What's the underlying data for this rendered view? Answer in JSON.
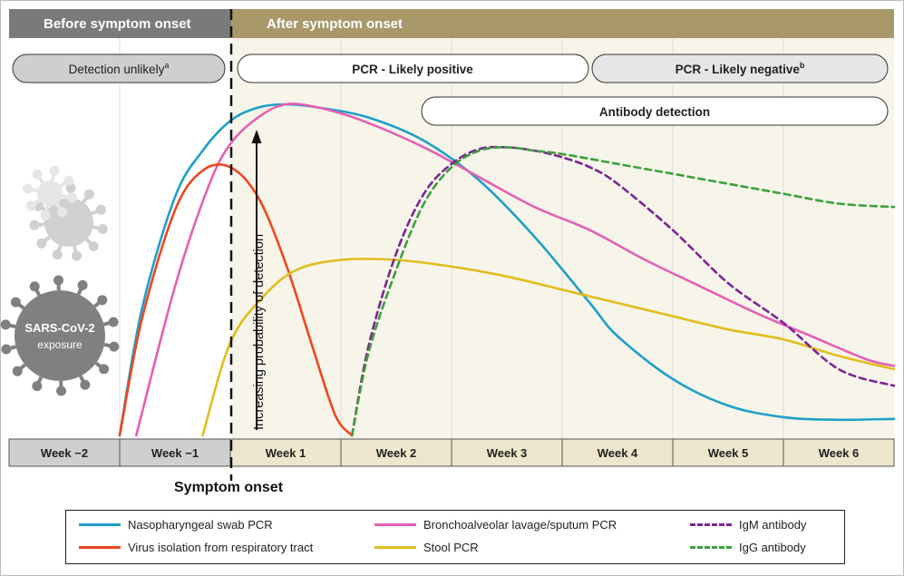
{
  "header": {
    "before_label": "Before symptom onset",
    "after_label": "After symptom onset",
    "before_color": "#7a7a7a",
    "after_color": "#a8986a"
  },
  "pills": {
    "detection_unlikely": "Detection unlikely",
    "detection_unlikely_sup": "a",
    "pcr_positive": "PCR - Likely positive",
    "pcr_negative": "PCR - Likely negative",
    "pcr_negative_sup": "b",
    "antibody": "Antibody detection"
  },
  "virus": {
    "label_line1": "SARS-CoV-2",
    "label_line2": "exposure"
  },
  "annotation": {
    "arrow_text": "Increasing probability of detection",
    "symptom_onset": "Symptom onset"
  },
  "chart_data": {
    "type": "line",
    "title": "",
    "x_categories": [
      "Week −2",
      "Week −1",
      "Week 1",
      "Week 2",
      "Week 3",
      "Week 4",
      "Week 5",
      "Week 6"
    ],
    "xlim": [
      -2,
      6
    ],
    "ylim": [
      0,
      1
    ],
    "ylabel": "Increasing probability of detection",
    "symptom_onset_x": 0,
    "series": [
      {
        "name": "Nasopharyngeal swab PCR",
        "color": "#1ea0c8",
        "dash": false,
        "x": [
          -1.0,
          -0.8,
          -0.5,
          -0.25,
          0,
          0.25,
          0.5,
          0.8,
          1.25,
          1.75,
          2.25,
          2.75,
          3.25,
          3.5,
          4.0,
          4.5,
          5.0,
          5.5,
          6.0
        ],
        "y": [
          0.0,
          0.38,
          0.72,
          0.86,
          0.95,
          0.99,
          1.0,
          0.99,
          0.96,
          0.89,
          0.77,
          0.6,
          0.4,
          0.3,
          0.17,
          0.09,
          0.055,
          0.047,
          0.05
        ]
      },
      {
        "name": "Bronchoalveolar lavage/sputum PCR",
        "color": "#e65fb4",
        "dash": false,
        "x": [
          -0.85,
          -0.5,
          -0.2,
          0,
          0.25,
          0.5,
          0.8,
          1.2,
          1.75,
          2.25,
          2.75,
          3.25,
          3.75,
          4.25,
          4.75,
          5.25,
          5.75,
          6.0
        ],
        "y": [
          0.0,
          0.45,
          0.75,
          0.88,
          0.96,
          1.0,
          0.99,
          0.95,
          0.87,
          0.78,
          0.69,
          0.62,
          0.53,
          0.45,
          0.37,
          0.3,
          0.23,
          0.21
        ]
      },
      {
        "name": "Virus isolation from respiratory tract",
        "color": "#f0461e",
        "dash": false,
        "x": [
          -1.0,
          -0.8,
          -0.5,
          -0.25,
          0,
          0.25,
          0.5,
          0.75,
          0.95,
          1.1
        ],
        "y": [
          0.0,
          0.35,
          0.68,
          0.8,
          0.81,
          0.72,
          0.52,
          0.26,
          0.06,
          0.0
        ]
      },
      {
        "name": "Stool PCR",
        "color": "#e3bc1e",
        "dash": false,
        "x": [
          -0.25,
          0,
          0.3,
          0.6,
          1.0,
          1.5,
          2.0,
          2.5,
          3.0,
          3.5,
          4.0,
          4.5,
          5.0,
          5.5,
          6.0
        ],
        "y": [
          0.0,
          0.28,
          0.42,
          0.5,
          0.53,
          0.53,
          0.51,
          0.48,
          0.44,
          0.4,
          0.36,
          0.32,
          0.29,
          0.24,
          0.2
        ]
      },
      {
        "name": "IgM antibody",
        "color": "#7d2496",
        "dash": true,
        "x": [
          1.1,
          1.25,
          1.5,
          1.75,
          2.0,
          2.25,
          2.5,
          2.75,
          3.0,
          3.25,
          3.5,
          4.0,
          4.5,
          5.0,
          5.5,
          6.0
        ],
        "y": [
          0.0,
          0.27,
          0.55,
          0.73,
          0.82,
          0.865,
          0.87,
          0.86,
          0.84,
          0.81,
          0.76,
          0.62,
          0.46,
          0.34,
          0.2,
          0.15
        ]
      },
      {
        "name": "IgG antibody",
        "color": "#3ca03c",
        "dash": true,
        "x": [
          1.1,
          1.25,
          1.5,
          1.75,
          2.0,
          2.25,
          2.5,
          2.75,
          3.0,
          3.5,
          4.0,
          4.5,
          5.0,
          5.5,
          6.0
        ],
        "y": [
          0.0,
          0.25,
          0.5,
          0.7,
          0.81,
          0.86,
          0.87,
          0.86,
          0.85,
          0.82,
          0.79,
          0.76,
          0.73,
          0.7,
          0.69
        ]
      }
    ]
  },
  "legend": {
    "items": [
      {
        "label": "Nasopharyngeal swab PCR",
        "color": "#1ea0c8",
        "dash": false
      },
      {
        "label": "Bronchoalveolar lavage/sputum PCR",
        "color": "#e65fb4",
        "dash": false
      },
      {
        "label": "IgM antibody",
        "color": "#7d2496",
        "dash": true
      },
      {
        "label": "Virus isolation from respiratory tract",
        "color": "#f0461e",
        "dash": false
      },
      {
        "label": "Stool PCR",
        "color": "#e3bc1e",
        "dash": false
      },
      {
        "label": "IgG antibody",
        "color": "#3ca03c",
        "dash": true
      }
    ]
  }
}
